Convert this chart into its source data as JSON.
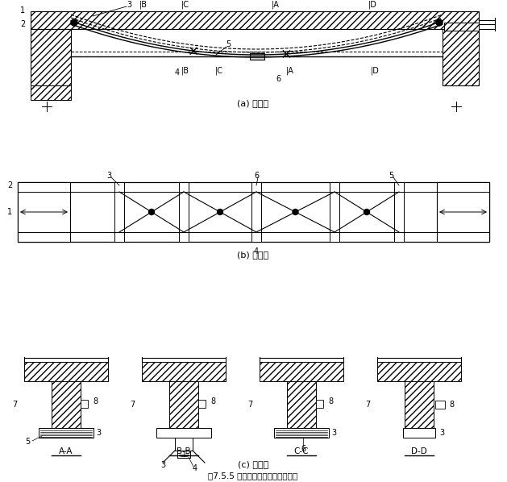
{
  "bg_color": "#ffffff",
  "line_color": "#000000",
  "title_a": "(a) 正视图",
  "title_b": "(b) 仰视图",
  "title_c": "(c) 剖面图",
  "caption": "图7.5.5 采用横向张拉法施加预应力"
}
